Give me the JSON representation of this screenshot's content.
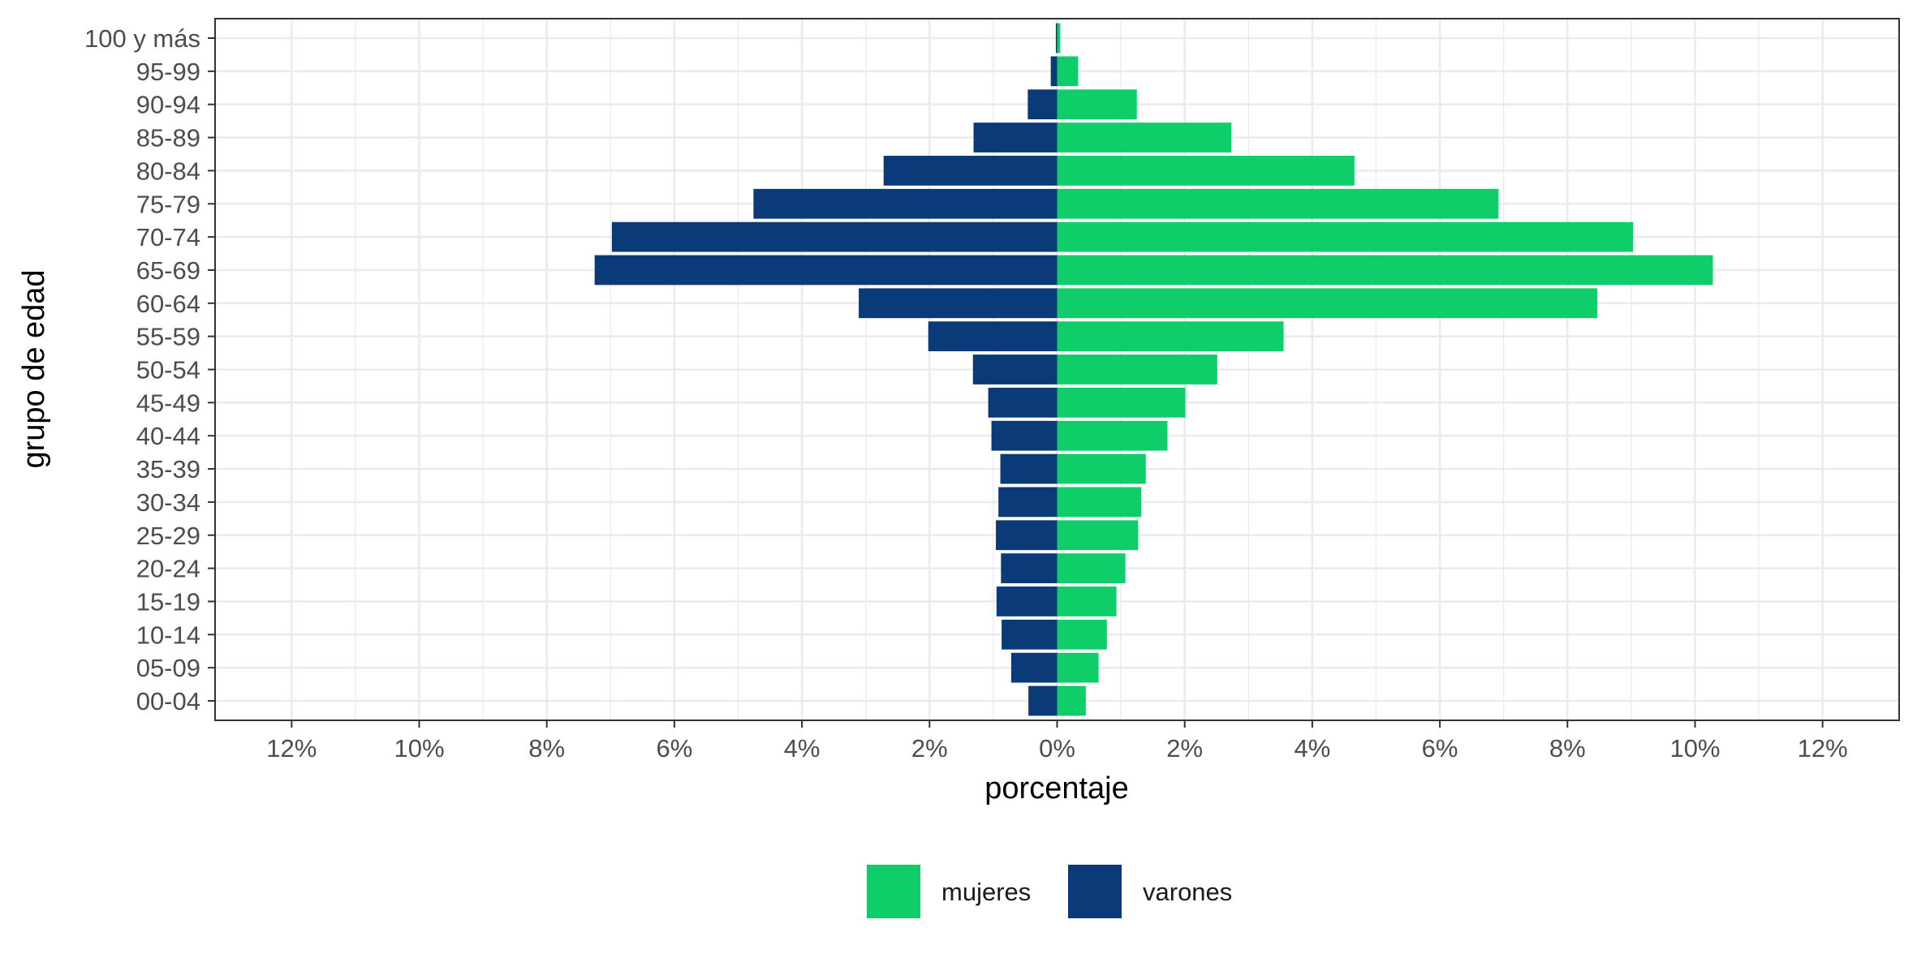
{
  "chart_data": {
    "type": "bar",
    "orientation": "horizontal",
    "layout": "population-pyramid",
    "categories": [
      "00-04",
      "05-09",
      "10-14",
      "15-19",
      "20-24",
      "25-29",
      "30-34",
      "35-39",
      "40-44",
      "45-49",
      "50-54",
      "55-59",
      "60-64",
      "65-69",
      "70-74",
      "75-79",
      "80-84",
      "85-89",
      "90-94",
      "95-99",
      "100 y más"
    ],
    "series": [
      {
        "name": "mujeres",
        "color": "#0fce6a",
        "side": "right",
        "values": [
          0.45,
          0.65,
          0.78,
          0.93,
          1.07,
          1.27,
          1.32,
          1.39,
          1.73,
          2.01,
          2.51,
          3.55,
          8.47,
          10.28,
          9.03,
          6.92,
          4.66,
          2.73,
          1.25,
          0.33,
          0.05
        ]
      },
      {
        "name": "varones",
        "color": "#0a3a78",
        "side": "left",
        "values": [
          0.45,
          0.72,
          0.87,
          0.95,
          0.88,
          0.96,
          0.92,
          0.89,
          1.03,
          1.08,
          1.32,
          2.02,
          3.11,
          7.25,
          6.98,
          4.76,
          2.72,
          1.31,
          0.46,
          0.1,
          0.02
        ]
      }
    ],
    "xlabel": "porcentaje",
    "ylabel": "grupo de edad",
    "xlim": [
      -13.2,
      13.2
    ],
    "x_ticks": [
      -12,
      -10,
      -8,
      -6,
      -4,
      -2,
      0,
      2,
      4,
      6,
      8,
      10,
      12
    ],
    "x_tick_labels": [
      "12%",
      "10%",
      "8%",
      "6%",
      "4%",
      "2%",
      "0%",
      "2%",
      "4%",
      "6%",
      "8%",
      "10%",
      "12%"
    ],
    "grid": true,
    "legend_position": "bottom"
  }
}
